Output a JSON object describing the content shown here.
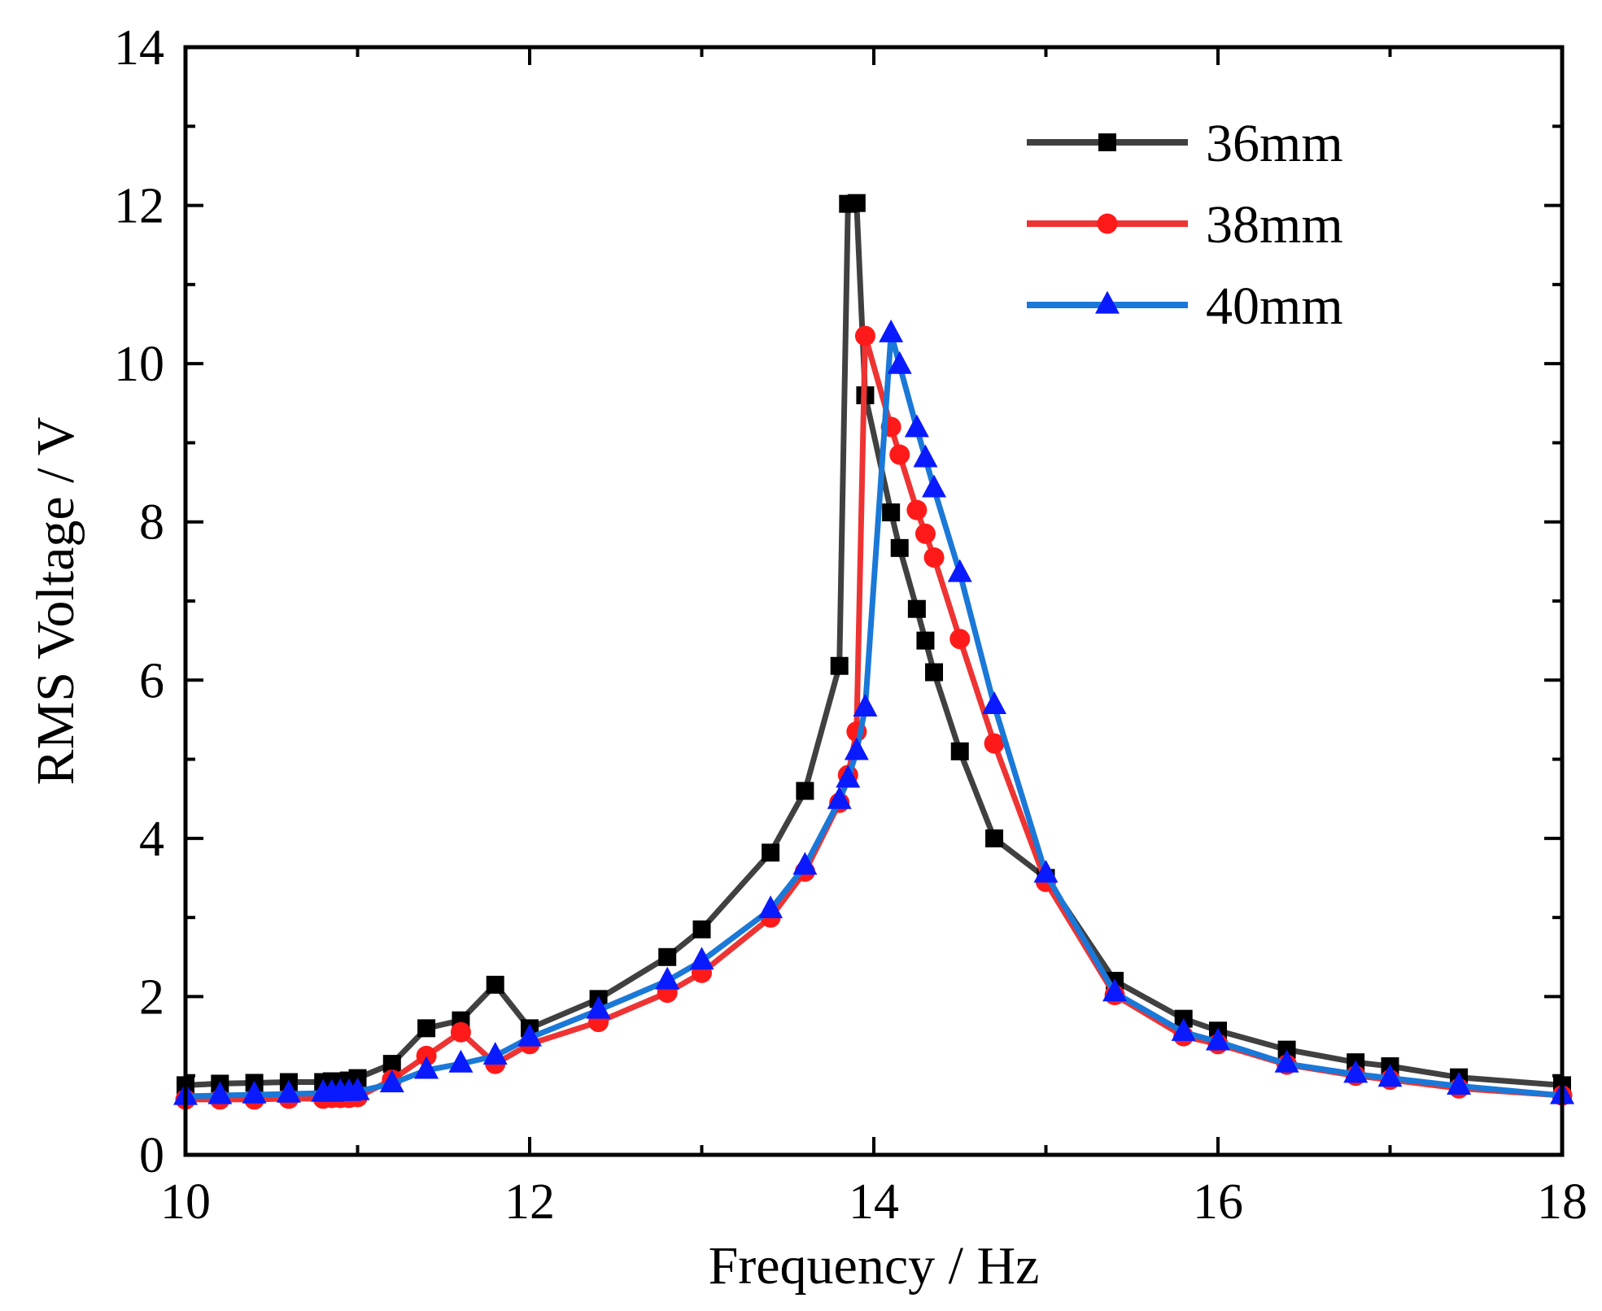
{
  "chart_data": {
    "type": "line",
    "title": "",
    "xlabel": "Frequency / Hz",
    "ylabel": "RMS Voltage / V",
    "xlim": [
      10,
      18
    ],
    "ylim": [
      0,
      14
    ],
    "xticks": [
      10,
      12,
      14,
      16,
      18
    ],
    "yticks": [
      0,
      2,
      4,
      6,
      8,
      10,
      12,
      14
    ],
    "grid": false,
    "legend_position": "top-right",
    "series": [
      {
        "name": "36mm",
        "color": "#404040",
        "marker": "square",
        "x": [
          10,
          10.2,
          10.4,
          10.6,
          10.8,
          10.85,
          10.9,
          10.95,
          11,
          11.2,
          11.4,
          11.6,
          11.8,
          12,
          12.4,
          12.8,
          13,
          13.4,
          13.6,
          13.8,
          13.85,
          13.9,
          13.95,
          14.1,
          14.15,
          14.25,
          14.3,
          14.35,
          14.5,
          14.7,
          15,
          15.4,
          15.8,
          16,
          16.4,
          16.8,
          17,
          17.4,
          18
        ],
        "y": [
          0.88,
          0.9,
          0.91,
          0.92,
          0.92,
          0.93,
          0.93,
          0.94,
          0.97,
          1.15,
          1.6,
          1.7,
          2.15,
          1.6,
          1.97,
          2.5,
          2.85,
          3.82,
          4.6,
          6.18,
          12.02,
          12.03,
          9.6,
          8.12,
          7.67,
          6.9,
          6.5,
          6.1,
          5.1,
          4.0,
          3.5,
          2.2,
          1.72,
          1.57,
          1.33,
          1.17,
          1.12,
          0.98,
          0.88
        ]
      },
      {
        "name": "38mm",
        "color": "#ee3333",
        "marker": "circle",
        "x": [
          10,
          10.2,
          10.4,
          10.6,
          10.8,
          10.85,
          10.9,
          10.95,
          11,
          11.2,
          11.4,
          11.6,
          11.8,
          12,
          12.4,
          12.8,
          13,
          13.4,
          13.6,
          13.8,
          13.85,
          13.9,
          13.95,
          14.1,
          14.15,
          14.25,
          14.3,
          14.35,
          14.5,
          14.7,
          15,
          15.4,
          15.8,
          16,
          16.4,
          16.8,
          17,
          17.4,
          18
        ],
        "y": [
          0.7,
          0.7,
          0.7,
          0.71,
          0.71,
          0.72,
          0.72,
          0.72,
          0.73,
          0.95,
          1.25,
          1.55,
          1.15,
          1.4,
          1.68,
          2.05,
          2.3,
          3.0,
          3.58,
          4.45,
          4.8,
          5.35,
          10.35,
          9.2,
          8.85,
          8.15,
          7.85,
          7.55,
          6.52,
          5.2,
          3.45,
          2.02,
          1.5,
          1.4,
          1.14,
          1.0,
          0.95,
          0.84,
          0.75
        ]
      },
      {
        "name": "40mm",
        "color": "#1a78d8",
        "marker": "triangle",
        "x": [
          10,
          10.2,
          10.4,
          10.6,
          10.8,
          10.85,
          10.9,
          10.95,
          11,
          11.2,
          11.4,
          11.6,
          11.8,
          12,
          12.4,
          12.8,
          13,
          13.4,
          13.6,
          13.8,
          13.85,
          13.9,
          13.95,
          14.1,
          14.15,
          14.25,
          14.3,
          14.35,
          14.5,
          14.7,
          15,
          15.4,
          15.8,
          16,
          16.4,
          16.8,
          17,
          17.4,
          18
        ],
        "y": [
          0.74,
          0.75,
          0.76,
          0.77,
          0.78,
          0.78,
          0.79,
          0.79,
          0.8,
          0.9,
          1.07,
          1.15,
          1.25,
          1.48,
          1.83,
          2.2,
          2.45,
          3.1,
          3.65,
          4.48,
          4.75,
          5.1,
          5.65,
          10.38,
          9.98,
          9.18,
          8.8,
          8.42,
          7.35,
          5.68,
          3.55,
          2.05,
          1.55,
          1.43,
          1.15,
          1.02,
          0.97,
          0.87,
          0.75
        ]
      }
    ]
  }
}
